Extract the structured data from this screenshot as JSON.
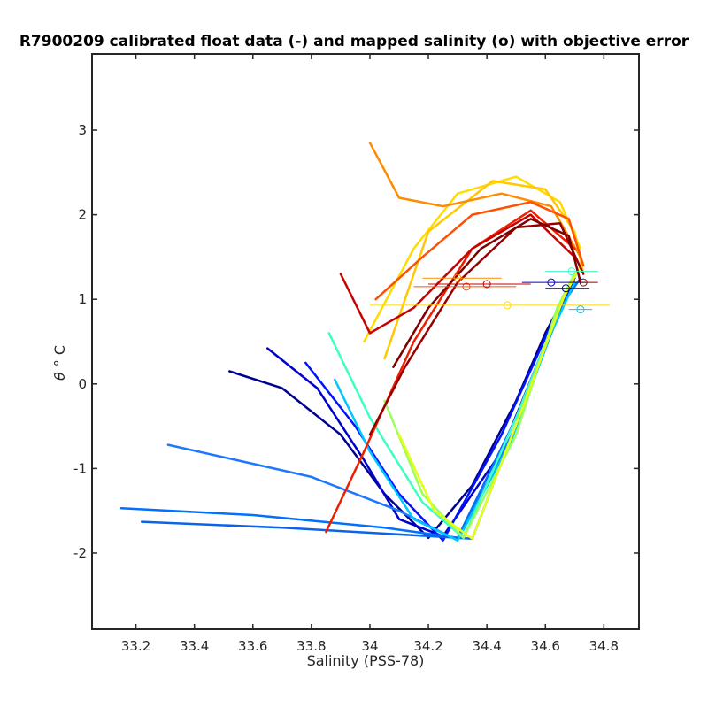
{
  "chart_data": {
    "type": "line",
    "title": "R7900209 calibrated float data (-) and mapped salinity (o) with objective error",
    "xlabel": "Salinity (PSS-78)",
    "ylabel_symbol": "θ",
    "ylabel_unit": "° C",
    "xlim": [
      33.05,
      34.92
    ],
    "ylim": [
      -2.9,
      3.9
    ],
    "xticks": [
      "33.2",
      "33.4",
      "33.6",
      "33.8",
      "34",
      "34.2",
      "34.4",
      "34.6",
      "34.8"
    ],
    "xtick_values": [
      33.2,
      33.4,
      33.6,
      33.8,
      34.0,
      34.2,
      34.4,
      34.6,
      34.8
    ],
    "yticks": [
      "3",
      "2",
      "1",
      "0",
      "-1",
      "-2"
    ],
    "ytick_values": [
      3,
      2,
      1,
      0,
      -1,
      -2
    ],
    "grid": false,
    "legend": "none",
    "colormap": "jet (profile number, blue = early, red = late)",
    "series": [
      {
        "color": "#00008f",
        "x": [
          33.52,
          33.7,
          33.9,
          34.05,
          34.2,
          34.35,
          34.5,
          34.6,
          34.7
        ],
        "y": [
          0.15,
          -0.05,
          -0.6,
          -1.3,
          -1.82,
          -1.2,
          -0.2,
          0.6,
          1.25
        ]
      },
      {
        "color": "#0000cc",
        "x": [
          33.65,
          33.82,
          33.98,
          34.1,
          34.25,
          34.45,
          34.58,
          34.68
        ],
        "y": [
          0.42,
          -0.05,
          -0.9,
          -1.6,
          -1.8,
          -0.8,
          0.3,
          1.15
        ]
      },
      {
        "color": "#0014ff",
        "x": [
          33.78,
          33.95,
          34.1,
          34.25,
          34.45,
          34.62,
          34.7
        ],
        "y": [
          0.25,
          -0.5,
          -1.3,
          -1.85,
          -0.6,
          0.7,
          1.2
        ]
      },
      {
        "color": "#0070ff",
        "x": [
          33.15,
          33.6,
          34.05,
          34.3,
          34.5,
          34.65,
          34.72
        ],
        "y": [
          -1.47,
          -1.55,
          -1.7,
          -1.82,
          -0.4,
          0.9,
          1.25
        ]
      },
      {
        "color": "#0a64e8",
        "x": [
          33.22,
          33.7,
          34.1,
          34.35,
          34.52,
          34.66
        ],
        "y": [
          -1.63,
          -1.7,
          -1.78,
          -1.83,
          -0.3,
          0.95
        ]
      },
      {
        "color": "#1e78ff",
        "x": [
          33.31,
          33.8,
          34.1,
          34.3,
          34.5,
          34.66
        ],
        "y": [
          -0.72,
          -1.1,
          -1.5,
          -1.85,
          -0.5,
          1.0
        ]
      },
      {
        "color": "#00c8ff",
        "x": [
          33.88,
          34.0,
          34.15,
          34.3,
          34.48,
          34.62,
          34.7
        ],
        "y": [
          0.05,
          -0.8,
          -1.6,
          -1.85,
          -0.7,
          0.6,
          1.2
        ]
      },
      {
        "color": "#3cffc3",
        "x": [
          33.86,
          34.0,
          34.18,
          34.32,
          34.5,
          34.66
        ],
        "y": [
          0.6,
          -0.4,
          -1.4,
          -1.82,
          -0.4,
          1.0
        ]
      },
      {
        "color": "#9bff5f",
        "x": [
          34.05,
          34.18,
          34.32,
          34.5,
          34.64,
          34.7
        ],
        "y": [
          -0.2,
          -1.3,
          -1.82,
          -0.6,
          0.9,
          1.3
        ]
      },
      {
        "color": "#e6ff14",
        "x": [
          34.1,
          34.22,
          34.35,
          34.52,
          34.66,
          34.72
        ],
        "y": [
          -0.6,
          -1.5,
          -1.83,
          -0.3,
          1.0,
          1.4
        ]
      },
      {
        "color": "#ffdc00",
        "x": [
          33.98,
          34.15,
          34.3,
          34.5,
          34.65,
          34.72
        ],
        "y": [
          0.5,
          1.6,
          2.25,
          2.45,
          2.15,
          1.6
        ]
      },
      {
        "color": "#ffc800",
        "x": [
          34.05,
          34.2,
          34.42,
          34.6,
          34.7,
          34.73
        ],
        "y": [
          0.3,
          1.8,
          2.4,
          2.3,
          1.8,
          1.3
        ]
      },
      {
        "color": "#ff8c00",
        "x": [
          34.0,
          34.1,
          34.25,
          34.45,
          34.62,
          34.72
        ],
        "y": [
          2.85,
          2.2,
          2.1,
          2.25,
          2.1,
          1.5
        ]
      },
      {
        "color": "#ff5000",
        "x": [
          34.02,
          34.18,
          34.35,
          34.55,
          34.68,
          34.73
        ],
        "y": [
          1.0,
          1.5,
          2.0,
          2.15,
          1.95,
          1.4
        ]
      },
      {
        "color": "#f01e00",
        "x": [
          33.85,
          33.98,
          34.15,
          34.35,
          34.55,
          34.7
        ],
        "y": [
          -1.75,
          -0.8,
          0.5,
          1.6,
          2.05,
          1.6
        ]
      },
      {
        "color": "#c80000",
        "x": [
          33.9,
          34.0,
          34.15,
          34.35,
          34.55,
          34.7
        ],
        "y": [
          1.3,
          0.6,
          0.9,
          1.6,
          2.0,
          1.5
        ]
      },
      {
        "color": "#960000",
        "x": [
          34.0,
          34.12,
          34.3,
          34.5,
          34.65,
          34.73
        ],
        "y": [
          -0.6,
          0.2,
          1.2,
          1.85,
          1.9,
          1.3
        ]
      },
      {
        "color": "#800000",
        "x": [
          34.08,
          34.2,
          34.38,
          34.55,
          34.68,
          34.72
        ],
        "y": [
          0.2,
          0.9,
          1.6,
          1.95,
          1.75,
          1.2
        ]
      }
    ],
    "mapped_points": [
      {
        "x": 34.47,
        "y": 0.93,
        "xerr": [
          34.0,
          34.82
        ],
        "color": "#ffdc00"
      },
      {
        "x": 34.33,
        "y": 1.15,
        "xerr": [
          34.15,
          34.5
        ],
        "color": "#ff5000"
      },
      {
        "x": 34.3,
        "y": 1.25,
        "xerr": [
          34.18,
          34.45
        ],
        "color": "#ff8c00"
      },
      {
        "x": 34.4,
        "y": 1.18,
        "xerr": [
          34.2,
          34.55
        ],
        "color": "#c80000"
      },
      {
        "x": 34.69,
        "y": 1.33,
        "xerr": [
          34.6,
          34.78
        ],
        "color": "#3cffc3"
      },
      {
        "x": 34.62,
        "y": 1.2,
        "xerr": [
          34.52,
          34.74
        ],
        "color": "#0000cc"
      },
      {
        "x": 34.67,
        "y": 1.13,
        "xerr": [
          34.6,
          34.75
        ],
        "color": "#00008f"
      },
      {
        "x": 34.72,
        "y": 0.88,
        "xerr": [
          34.68,
          34.76
        ],
        "color": "#00c8ff"
      },
      {
        "x": 34.73,
        "y": 1.2,
        "xerr": [
          34.68,
          34.78
        ],
        "color": "#960000"
      }
    ]
  }
}
